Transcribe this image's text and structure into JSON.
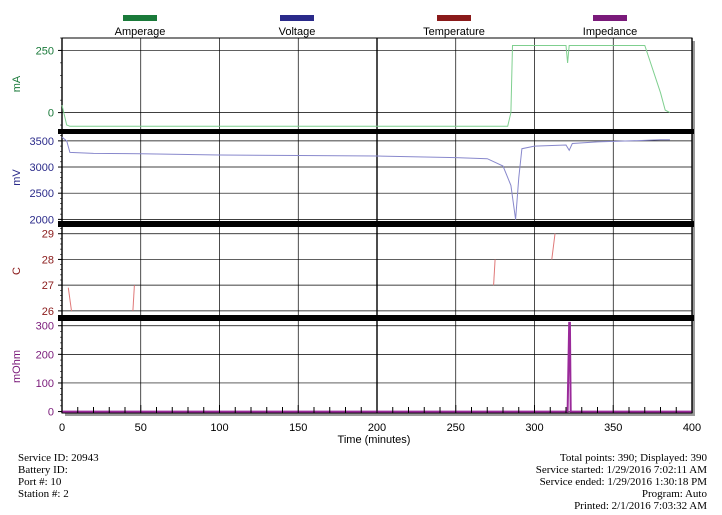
{
  "chart_data": {
    "type": "line",
    "legend_placement": "top",
    "x_axis": {
      "label": "Time (minutes)",
      "range": [
        0,
        400
      ],
      "ticks": [
        0,
        50,
        100,
        150,
        200,
        250,
        300,
        350,
        400
      ]
    },
    "series": [
      {
        "name": "Amperage",
        "unit": "mA",
        "color": "#1a7a3a",
        "line_color": "#7fcf8f",
        "y_range": [
          -70,
          300
        ],
        "ticks": [
          0,
          250
        ],
        "x": [
          0,
          3,
          5,
          10,
          50,
          100,
          200,
          250,
          283,
          285,
          286,
          300,
          320,
          321,
          322,
          323,
          370,
          380,
          383,
          386
        ],
        "values": [
          30,
          -50,
          -55,
          -55,
          -55,
          -55,
          -55,
          -55,
          -55,
          0,
          270,
          270,
          270,
          200,
          270,
          270,
          270,
          80,
          10,
          0
        ]
      },
      {
        "name": "Voltage",
        "unit": "mV",
        "color": "#2a2a8a",
        "line_color": "#8888cc",
        "y_range": [
          1950,
          3650
        ],
        "ticks": [
          2000,
          2500,
          3000,
          3500
        ],
        "x": [
          0,
          3,
          5,
          20,
          50,
          100,
          150,
          200,
          250,
          270,
          280,
          285,
          288,
          290,
          292,
          300,
          320,
          322,
          324,
          340,
          360,
          380,
          386
        ],
        "values": [
          3570,
          3500,
          3280,
          3260,
          3255,
          3230,
          3220,
          3210,
          3180,
          3160,
          3020,
          2650,
          2000,
          2800,
          3350,
          3400,
          3420,
          3320,
          3450,
          3480,
          3500,
          3520,
          3520
        ]
      },
      {
        "name": "Temperature",
        "unit": "C",
        "color": "#8a1a1a",
        "line_color": "#e07878",
        "y_range": [
          25.8,
          29.3
        ],
        "ticks": [
          26,
          27,
          28,
          29
        ],
        "segments": [
          {
            "x": [
              4,
              6
            ],
            "values": [
              26.9,
              26.0
            ]
          },
          {
            "x": [
              45,
              46
            ],
            "values": [
              26.0,
              27.0
            ]
          },
          {
            "x": [
              274,
              275
            ],
            "values": [
              27.0,
              28.0
            ]
          },
          {
            "x": [
              311,
              313
            ],
            "values": [
              28.0,
              29.0
            ]
          }
        ]
      },
      {
        "name": "Impedance",
        "unit": "mOhm",
        "color": "#7a1a7a",
        "line_color": "#9a2a9a",
        "y_range": [
          -5,
          320
        ],
        "ticks": [
          0,
          100,
          200,
          300
        ],
        "x": [
          0,
          321,
          322,
          322.5,
          323,
          400
        ],
        "values": [
          0,
          0,
          310,
          310,
          0,
          0
        ]
      }
    ]
  },
  "footer": {
    "left": [
      "Service ID: 20943",
      "Battery ID:",
      "Port #: 10",
      "Station #: 2"
    ],
    "right": [
      "Total points: 390; Displayed: 390",
      "Service started: 1/29/2016 7:02:11 AM",
      "Service ended: 1/29/2016 1:30:18 PM",
      "Program: Auto",
      "Printed: 2/1/2016 7:03:32 AM"
    ]
  }
}
